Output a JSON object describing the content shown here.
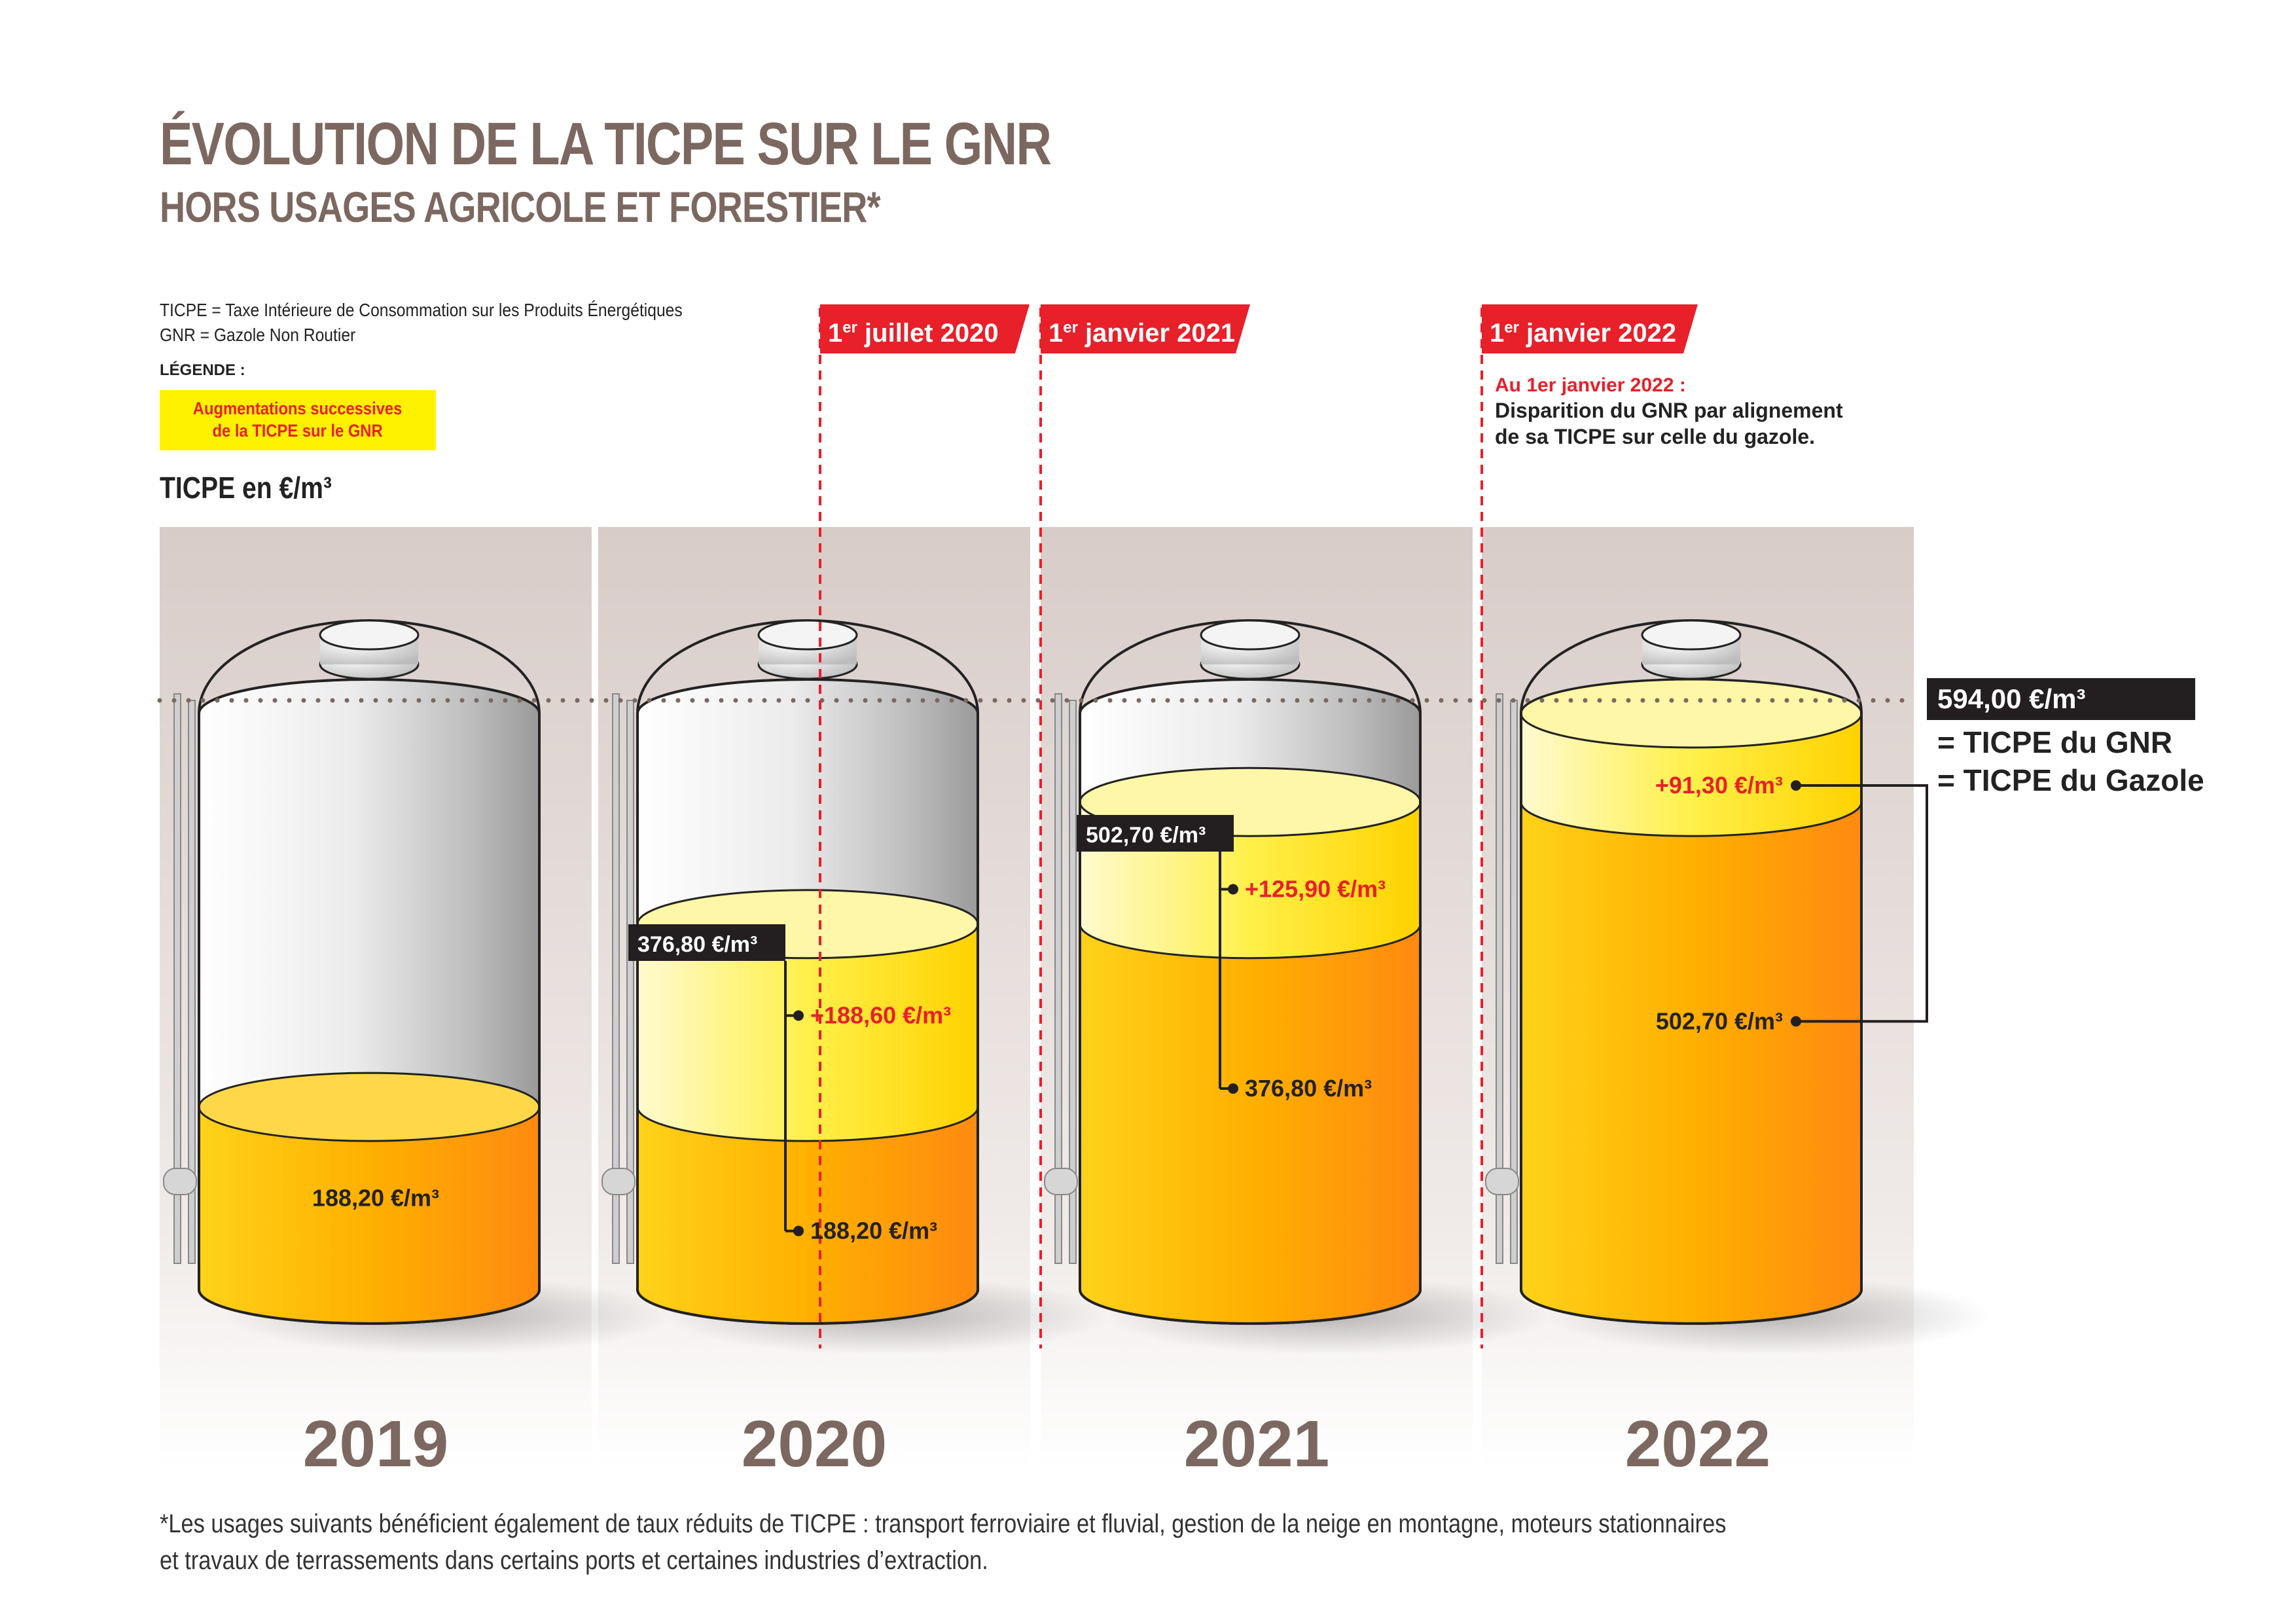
{
  "title": "ÉVOLUTION DE LA TICPE SUR LE GNR",
  "subtitle": "HORS USAGES AGRICOLE ET FORESTIER*",
  "definitions": [
    "TICPE = Taxe Intérieure de Consommation sur les Produits Énergétiques",
    "GNR = Gazole Non Routier"
  ],
  "legend": {
    "title": "LÉGENDE :",
    "item_line1": "Augmentations successives",
    "item_line2": "de la TICPE sur le GNR"
  },
  "unit_label": "TICPE en €/m³",
  "colors": {
    "title": "#7c6860",
    "accent_red": "#e8202a",
    "increase_yellow": "#fff200",
    "fuel_orange": "#ffa800",
    "label_black": "#231f20"
  },
  "events": [
    {
      "sup": "er",
      "prefix": "1",
      "text": "juillet 2020"
    },
    {
      "sup": "er",
      "prefix": "1",
      "text": "janvier 2021"
    },
    {
      "sup": "er",
      "prefix": "1",
      "text": "janvier 2022"
    }
  ],
  "event_note": {
    "heading": "Au 1er janvier 2022 :",
    "line1": "Disparition du GNR par alignement",
    "line2": "de sa TICPE sur celle du gazole."
  },
  "final_box": {
    "value": "594,00 €/m³",
    "line1": "= TICPE du GNR",
    "line2": "= TICPE du Gazole"
  },
  "chart_data": {
    "type": "bar",
    "unit": "€/m³",
    "categories": [
      "2019",
      "2020",
      "2021",
      "2022"
    ],
    "ylim": [
      0,
      594
    ],
    "max_reference": 594.0,
    "series": [
      {
        "values": [
          188.2,
          188.2,
          376.8,
          502.7
        ]
      },
      {
        "values": [
          0,
          188.6,
          125.9,
          91.3
        ]
      }
    ],
    "labels": {
      "base": [
        "188,20 €/m³",
        "188,20 €/m³",
        "376,80 €/m³",
        "502,70 €/m³"
      ],
      "increase": [
        "",
        "+188,60 €/m³",
        "+125,90 €/m³",
        "+91,30 €/m³"
      ],
      "total": [
        "",
        "376,80 €/m³",
        "502,70 €/m³",
        "594,00 €/m³"
      ]
    }
  },
  "footnote_line1": "*Les usages suivants bénéficient également de taux réduits de TICPE : transport ferroviaire et fluvial, gestion de la neige en montagne, moteurs stationnaires",
  "footnote_line2": "et travaux de terrassements dans certains ports et certaines industries d’extraction."
}
